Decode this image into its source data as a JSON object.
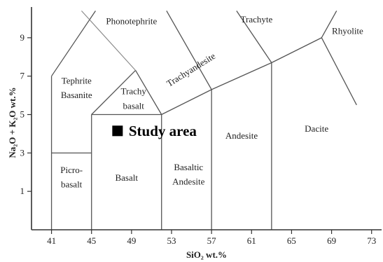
{
  "chart_data": {
    "type": "scatter",
    "title": "",
    "xlabel": "SiO₂ wt.%",
    "ylabel": "Na₂O + K₂O wt.%",
    "xlim": [
      39,
      74
    ],
    "ylim": [
      -1,
      10.6
    ],
    "xticks": [
      41,
      45,
      49,
      53,
      57,
      61,
      65,
      69,
      73
    ],
    "yticks": [
      1,
      3,
      5,
      7,
      9
    ],
    "grid": false,
    "boundaries": [
      [
        [
          41,
          -1
        ],
        [
          41,
          7
        ]
      ],
      [
        [
          41,
          3
        ],
        [
          45,
          3
        ]
      ],
      [
        [
          45,
          -1
        ],
        [
          45,
          5
        ]
      ],
      [
        [
          45,
          5
        ],
        [
          52,
          5
        ]
      ],
      [
        [
          52,
          -1
        ],
        [
          52,
          5
        ]
      ],
      [
        [
          52,
          5
        ],
        [
          57,
          6.3
        ]
      ],
      [
        [
          57,
          -1
        ],
        [
          57,
          6.3
        ]
      ],
      [
        [
          57,
          6.3
        ],
        [
          63,
          7.7
        ]
      ],
      [
        [
          63,
          -1
        ],
        [
          63,
          7.7
        ]
      ],
      [
        [
          63,
          7.7
        ],
        [
          68,
          9.0
        ]
      ],
      [
        [
          68,
          9.0
        ],
        [
          69.5,
          10.4
        ]
      ],
      [
        [
          68,
          9.0
        ],
        [
          71.5,
          5.5
        ]
      ],
      [
        [
          63,
          7.7
        ],
        [
          59.5,
          10.4
        ]
      ],
      [
        [
          45,
          5
        ],
        [
          49.4,
          7.3
        ]
      ],
      [
        [
          49.4,
          7.3
        ],
        [
          52,
          5
        ]
      ],
      [
        [
          57,
          6.3
        ],
        [
          52.5,
          10.4
        ]
      ],
      [
        [
          41,
          7
        ],
        [
          45.4,
          10.4
        ]
      ]
    ],
    "boundaries_faint": [
      [
        [
          49.4,
          7.3
        ],
        [
          44,
          10.4
        ]
      ]
    ],
    "fields": [
      {
        "label": "Phonotephrite",
        "x": 49.0,
        "y": 9.7
      },
      {
        "label": "Trachyte",
        "x": 61.5,
        "y": 9.8
      },
      {
        "label": "Rhyolite",
        "x": 70.6,
        "y": 9.2
      },
      {
        "label": "Tephrite",
        "x": 43.5,
        "y": 6.6
      },
      {
        "label": "Basanite",
        "x": 43.5,
        "y": 5.85
      },
      {
        "label": "Trachy",
        "x": 49.2,
        "y": 6.05
      },
      {
        "label": "basalt",
        "x": 49.2,
        "y": 5.3
      },
      {
        "label": "Andesite",
        "x": 60.0,
        "y": 3.75
      },
      {
        "label": "Dacite",
        "x": 67.5,
        "y": 4.1
      },
      {
        "label": "Picro-",
        "x": 43.0,
        "y": 1.95
      },
      {
        "label": "basalt",
        "x": 43.0,
        "y": 1.2
      },
      {
        "label": "Basalt",
        "x": 48.5,
        "y": 1.55
      },
      {
        "label": "Basaltic",
        "x": 54.7,
        "y": 2.1
      },
      {
        "label": "Andesite",
        "x": 54.7,
        "y": 1.35
      }
    ],
    "rotated_fields": [
      {
        "label": "Trachyandesite",
        "x": 55.1,
        "y": 7.2,
        "angle": -32
      }
    ],
    "series": [
      {
        "name": "Study area",
        "points": [
          {
            "x": 47.6,
            "y": 4.15
          }
        ]
      }
    ]
  }
}
